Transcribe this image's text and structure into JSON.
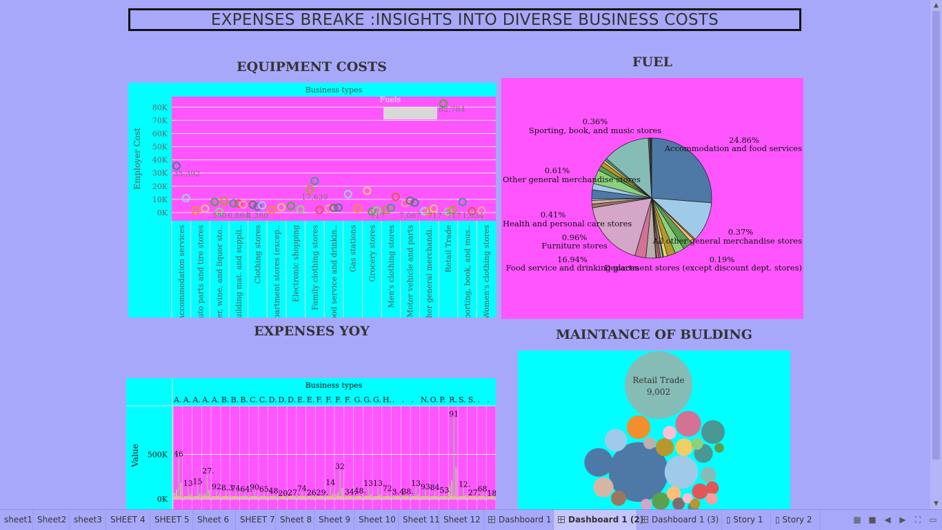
{
  "dashboard_title": "EXPENSES BREAKE :INSIGHTS INTO DIVERSE BUSINESS COSTS",
  "equipment": {
    "title": "EQUIPMENT COSTS",
    "chart_data": {
      "type": "scatter",
      "title": "EQUIPMENT COSTS",
      "xlabel": "Business types",
      "ylabel": "Employer Cost",
      "ylim": [
        0,
        88000
      ],
      "yticks": [
        "0K",
        "10K",
        "20K",
        "30K",
        "40K",
        "50K",
        "60K",
        "70K",
        "80K"
      ],
      "categories": [
        "Accommodation services",
        "Auto parts and tire stores",
        "Beer, wine, and liquor sto..",
        "Building mat. and suppli..",
        "Clothing stores",
        "Department stores (excep..",
        "Electronic shopping",
        "Family clothing stores",
        "Food service and drinkin..",
        "Gas stations",
        "Grocery stores",
        "Men's clothing stores",
        "Motor vehicle and parts",
        "Other general merchandi..",
        "Retail Trade",
        "Sporting, book, and mus..",
        "Women's clothing stores"
      ],
      "data_labels": [
        "35,392",
        "590",
        "6,864",
        "4,360",
        "17,639",
        "717",
        "7,067",
        "717",
        "717",
        "1,034",
        "82,784"
      ],
      "legend_title": "Fuels",
      "grid": true
    }
  },
  "fuel": {
    "title": "FUEL",
    "chart_data": {
      "type": "pie",
      "title": "FUEL",
      "slices": [
        {
          "label": "Accommodation and food services",
          "value": 24.86,
          "color": "#4e79a7"
        },
        {
          "label": "",
          "value": 10.2,
          "color": "#a0cbe8"
        },
        {
          "label": "All other general merchandise stores",
          "value": 0.37,
          "color": "#f28e2b"
        },
        {
          "label": "",
          "value": 0.9,
          "color": "#ffbe7d"
        },
        {
          "label": "",
          "value": 2.5,
          "color": "#59a14f"
        },
        {
          "label": "",
          "value": 2.4,
          "color": "#8cd17d"
        },
        {
          "label": "",
          "value": 2.1,
          "color": "#b6992d"
        },
        {
          "label": "",
          "value": 1.0,
          "color": "#f1ce63"
        },
        {
          "label": "Department stores (except discount dept. stores)",
          "value": 0.19,
          "color": "#499894"
        },
        {
          "label": "",
          "value": 0.6,
          "color": "#86bcb6"
        },
        {
          "label": "",
          "value": 0.5,
          "color": "#e15759"
        },
        {
          "label": "",
          "value": 0.4,
          "color": "#ff9d9a"
        },
        {
          "label": "",
          "value": 0.3,
          "color": "#79706e"
        },
        {
          "label": "",
          "value": 2.5,
          "color": "#bab0ac"
        },
        {
          "label": "",
          "value": 2.8,
          "color": "#d37295"
        },
        {
          "label": "Food service and drinking places",
          "value": 16.94,
          "color": "#d4a6c8"
        },
        {
          "label": "Furniture stores",
          "value": 0.96,
          "color": "#9d7660"
        },
        {
          "label": "",
          "value": 0.9,
          "color": "#d7b5a6"
        },
        {
          "label": "Health and personal care stores",
          "value": 0.41,
          "color": "#a0cbe8"
        },
        {
          "label": "",
          "value": 2.3,
          "color": "#4e79a7"
        },
        {
          "label": "",
          "value": 1.6,
          "color": "#a0cbe8"
        },
        {
          "label": "",
          "value": 3.6,
          "color": "#8cd17d"
        },
        {
          "label": "",
          "value": 1.2,
          "color": "#59a14f"
        },
        {
          "label": "",
          "value": 1.1,
          "color": "#b6992d"
        },
        {
          "label": "Other general merchandise stores",
          "value": 0.61,
          "color": "#f1ce63"
        },
        {
          "label": "",
          "value": 0.6,
          "color": "#499894"
        },
        {
          "label": "",
          "value": 12.0,
          "color": "#86bcb6"
        },
        {
          "label": "Sporting, book, and  music stores",
          "value": 0.36,
          "color": "#79706e"
        },
        {
          "label": "",
          "value": 0.5,
          "color": "#333333"
        }
      ],
      "labels_shown": [
        {
          "pct": "24.86%",
          "name": "Accommodation and food services"
        },
        {
          "pct": "0.37%",
          "name": "All other general merchandise stores"
        },
        {
          "pct": "0.19%",
          "name": "Department stores (except discount dept. stores)"
        },
        {
          "pct": "16.94%",
          "name": "Food service and drinking places"
        },
        {
          "pct": "0.96%",
          "name": "Furniture stores"
        },
        {
          "pct": "0.41%",
          "name": "Health and personal care stores"
        },
        {
          "pct": "0.61%",
          "name": "Other general merchandise stores"
        },
        {
          "pct": "0.36%",
          "name": "Sporting, book, and  music stores"
        }
      ]
    }
  },
  "yoy": {
    "title": "EXPENSES YOY",
    "chart_data": {
      "type": "bar",
      "title": "EXPENSES YOY",
      "xlabel": "Business types",
      "ylabel": "Value",
      "ylim": [
        0,
        1000000
      ],
      "yticks": [
        "0K",
        "500K"
      ],
      "column_headers": [
        "A.",
        "A.",
        "A.",
        "A.",
        "A.",
        "B.",
        "B.",
        "B.",
        "C.",
        "C.",
        "D.",
        "D.",
        "D.",
        "E.",
        "E.",
        "F.",
        "F.",
        "F.",
        "F.",
        "G.",
        "G.",
        "G.",
        "H.",
        ".",
        ".",
        ".",
        "N.",
        "O.",
        "P.",
        "R.",
        "S.",
        "S.",
        ".",
        "."
      ],
      "label_values": [
        "46",
        "13",
        "15",
        "27.",
        "92.",
        "8.3",
        "74.",
        "64.",
        "90.",
        "65.",
        "48.",
        "20.",
        "27.",
        "74.",
        "26",
        "29.",
        "14",
        "32",
        "34.",
        "48.",
        "13",
        "13",
        "72.",
        "3.4",
        "38.",
        "13",
        "93.",
        "84.",
        "53.",
        "91",
        "12.",
        "27.",
        "68.",
        "18"
      ],
      "peak_values": [
        460000,
        130000,
        150000,
        270000,
        92000,
        83000,
        74000,
        64000,
        90000,
        65000,
        48000,
        20000,
        27000,
        74000,
        26000,
        29000,
        140000,
        320000,
        34000,
        48000,
        130000,
        130000,
        72000,
        34000,
        38000,
        130000,
        93000,
        84000,
        53000,
        910000,
        120000,
        27000,
        68000,
        18000
      ]
    }
  },
  "maint": {
    "title": "MAINTANCE OF BULDING",
    "chart_data": {
      "type": "bubble",
      "title": "MAINTANCE OF BULDING",
      "top_label": "Retail Trade",
      "top_value": "9,002",
      "bubbles": [
        {
          "value": 9002,
          "color": "#86bcb6"
        },
        {
          "value": 7000,
          "color": "#4e79a7"
        },
        {
          "value": 2200,
          "color": "#a0cbe8"
        },
        {
          "value": 1600,
          "color": "#4e79a7"
        },
        {
          "value": 1300,
          "color": "#d37295"
        },
        {
          "value": 1100,
          "color": "#f28e2b"
        },
        {
          "value": 1100,
          "color": "#499894"
        },
        {
          "value": 1000,
          "color": "#a0cbe8"
        },
        {
          "value": 800,
          "color": "#d7b5a6"
        },
        {
          "value": 700,
          "color": "#499894"
        },
        {
          "value": 650,
          "color": "#b6992d"
        },
        {
          "value": 600,
          "color": "#f1ce63"
        },
        {
          "value": 600,
          "color": "#59a14f"
        },
        {
          "value": 500,
          "color": "#86bcb6"
        },
        {
          "value": 500,
          "color": "#e15759"
        },
        {
          "value": 450,
          "color": "#9d7660"
        },
        {
          "value": 400,
          "color": "#ffbe7d"
        },
        {
          "value": 350,
          "color": "#fabfd2"
        },
        {
          "value": 330,
          "color": "#e15759"
        },
        {
          "value": 300,
          "color": "#bab0ac"
        },
        {
          "value": 300,
          "color": "#79706e"
        },
        {
          "value": 280,
          "color": "#8cd17d"
        },
        {
          "value": 260,
          "color": "#ff9d9a"
        },
        {
          "value": 250,
          "color": "#d4a6c8"
        },
        {
          "value": 220,
          "color": "#499894"
        },
        {
          "value": 200,
          "color": "#fabfd2"
        },
        {
          "value": 200,
          "color": "#b6992d"
        },
        {
          "value": 180,
          "color": "#59a14f"
        }
      ]
    }
  },
  "tabs": [
    "sheet1",
    "Sheet2",
    "sheet3",
    "SHEET 4",
    "SHEET 5",
    "Sheet 6",
    "SHEET 7",
    "Sheet 8",
    "Sheet 9",
    "Sheet 10",
    "Sheet 11",
    "Sheet 12",
    "Dashboard 1",
    "Dashboard 1 (2)",
    "Dashboard 1 (3)",
    "Story 1",
    "Story 2"
  ],
  "active_tab": "Dashboard 1 (2)",
  "icons": [
    "dashboard-icon",
    "story-icon",
    "grid-view-icon",
    "filmstrip-icon",
    "prev-arrow-icon",
    "next-arrow-icon",
    "fullscreen-icon",
    "present-icon"
  ],
  "colors": {
    "background": "#a8a8fb",
    "cyan_panel": "#00ffff",
    "magenta_panel": "#ff55ff"
  }
}
